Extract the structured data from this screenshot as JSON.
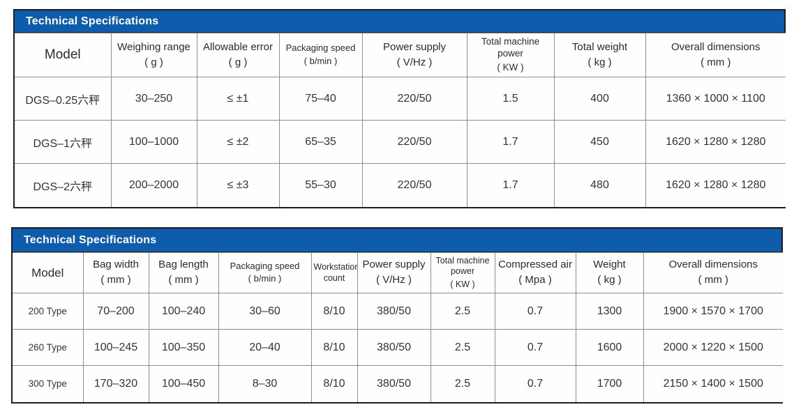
{
  "colors": {
    "accent_blue": "#0e5cab",
    "grid_line": "#8e8e8e",
    "outer_border": "#1d1d1d",
    "title_text": "#ffffff",
    "body_text": "#333333"
  },
  "tables": [
    {
      "title": "Technical Specifications",
      "columns": [
        {
          "label": "Model",
          "unit": ""
        },
        {
          "label": "Weighing range",
          "unit": "( g )"
        },
        {
          "label": "Allowable error",
          "unit": "( g )"
        },
        {
          "label": "Packaging speed",
          "unit": "( b/min )"
        },
        {
          "label": "Power supply",
          "unit": "( V/Hz )"
        },
        {
          "label": "Total machine power",
          "unit": "( KW )"
        },
        {
          "label": "Total weight",
          "unit": "( kg )"
        },
        {
          "label": "Overall dimensions",
          "unit": "( mm )"
        }
      ],
      "rows": [
        [
          "DGS–0.25六秤",
          "30–250",
          "≤ ±1",
          "75–40",
          "220/50",
          "1.5",
          "400",
          "1360 × 1000 × 1100"
        ],
        [
          "DGS–1六秤",
          "100–1000",
          "≤ ±2",
          "65–35",
          "220/50",
          "1.7",
          "450",
          "1620 × 1280 × 1280"
        ],
        [
          "DGS–2六秤",
          "200–2000",
          "≤ ±3",
          "55–30",
          "220/50",
          "1.7",
          "480",
          "1620 × 1280 × 1280"
        ]
      ]
    },
    {
      "title": "Technical Specifications",
      "columns": [
        {
          "label": "Model",
          "unit": ""
        },
        {
          "label": "Bag width",
          "unit": "( mm )"
        },
        {
          "label": "Bag length",
          "unit": "( mm )"
        },
        {
          "label": "Packaging speed",
          "unit": "( b/min )"
        },
        {
          "label": "Workstation count",
          "unit": ""
        },
        {
          "label": "Power supply",
          "unit": "( V/Hz )"
        },
        {
          "label": "Total machine power",
          "unit": "( KW )"
        },
        {
          "label": "Compressed air",
          "unit": "( Mpa )"
        },
        {
          "label": "Weight",
          "unit": "( kg )"
        },
        {
          "label": "Overall dimensions",
          "unit": "( mm )"
        }
      ],
      "rows": [
        [
          "200 Type",
          "70–200",
          "100–240",
          "30–60",
          "8/10",
          "380/50",
          "2.5",
          "0.7",
          "1300",
          "1900 × 1570 × 1700"
        ],
        [
          "260 Type",
          "100–245",
          "100–350",
          "20–40",
          "8/10",
          "380/50",
          "2.5",
          "0.7",
          "1600",
          "2000 × 1220 × 1500"
        ],
        [
          "300 Type",
          "170–320",
          "100–450",
          "8–30",
          "8/10",
          "380/50",
          "2.5",
          "0.7",
          "1700",
          "2150 × 1400 × 1500"
        ]
      ]
    }
  ]
}
